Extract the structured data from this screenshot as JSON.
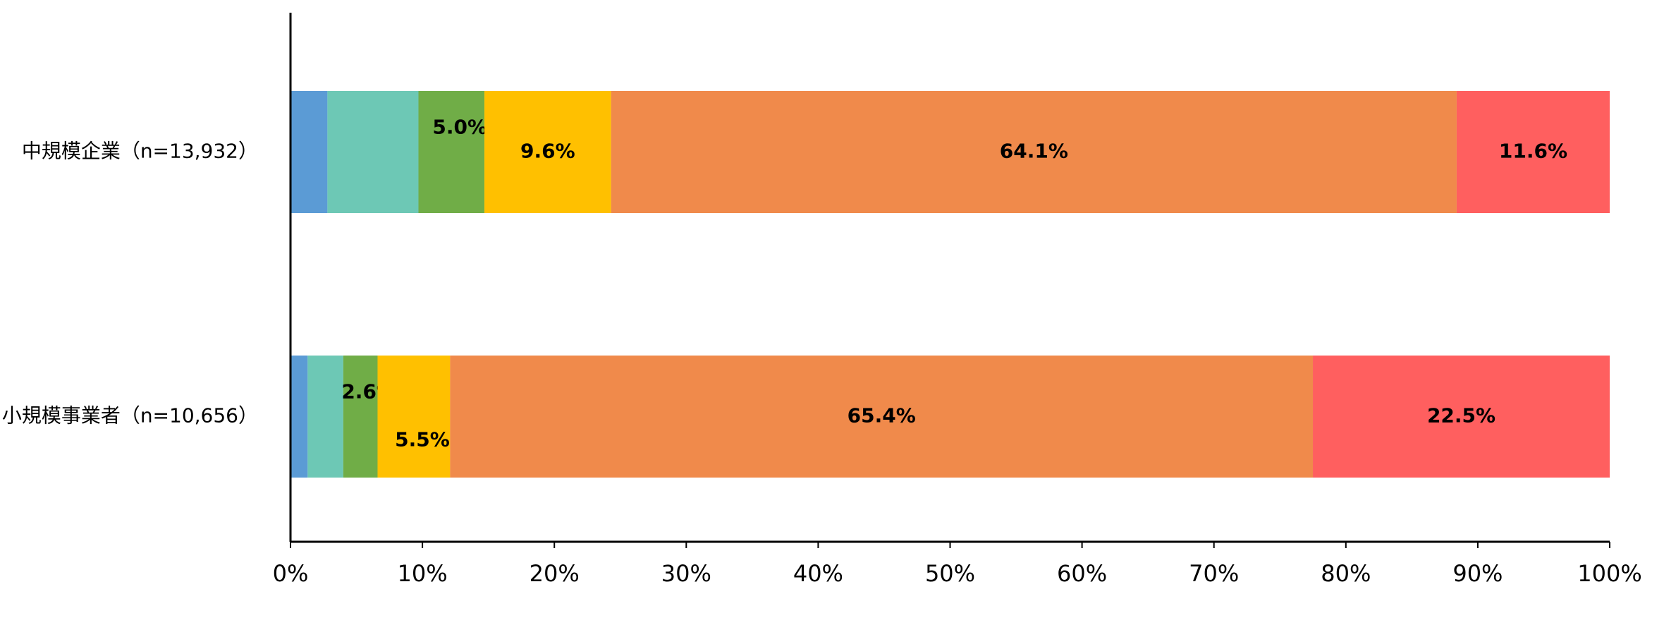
{
  "chart_data": {
    "type": "stacked-bar-horizontal",
    "categories": [
      "中規模企業（n=13,932）",
      "小規模事業者（n=10,656）"
    ],
    "series": [
      {
        "color": "#5b9bd5",
        "values": [
          2.8,
          1.3
        ],
        "value_labels": [
          null,
          null
        ]
      },
      {
        "color": "#6dc8b5",
        "values": [
          6.9,
          2.7
        ],
        "value_labels": [
          null,
          null
        ]
      },
      {
        "color": "#70ad47",
        "values": [
          5.0,
          2.6
        ],
        "value_labels": [
          "5.0%",
          "2.6%"
        ]
      },
      {
        "color": "#ffc000",
        "values": [
          9.6,
          5.5
        ],
        "value_labels": [
          "9.6%",
          "5.5%"
        ]
      },
      {
        "color": "#f08a4b",
        "values": [
          64.1,
          65.4
        ],
        "value_labels": [
          "64.1%",
          "65.4%"
        ]
      },
      {
        "color": "#ff5f5f",
        "values": [
          11.6,
          22.5
        ],
        "value_labels": [
          "11.6%",
          "22.5%"
        ]
      }
    ],
    "xlim": [
      0,
      100
    ],
    "xticks": [
      {
        "value": 0,
        "label": "0%"
      },
      {
        "value": 10,
        "label": "10%"
      },
      {
        "value": 20,
        "label": "20%"
      },
      {
        "value": 30,
        "label": "30%"
      },
      {
        "value": 40,
        "label": "40%"
      },
      {
        "value": 50,
        "label": "50%"
      },
      {
        "value": 60,
        "label": "60%"
      },
      {
        "value": 70,
        "label": "70%"
      },
      {
        "value": 80,
        "label": "80%"
      },
      {
        "value": 90,
        "label": "90%"
      },
      {
        "value": 100,
        "label": "100%"
      }
    ]
  }
}
